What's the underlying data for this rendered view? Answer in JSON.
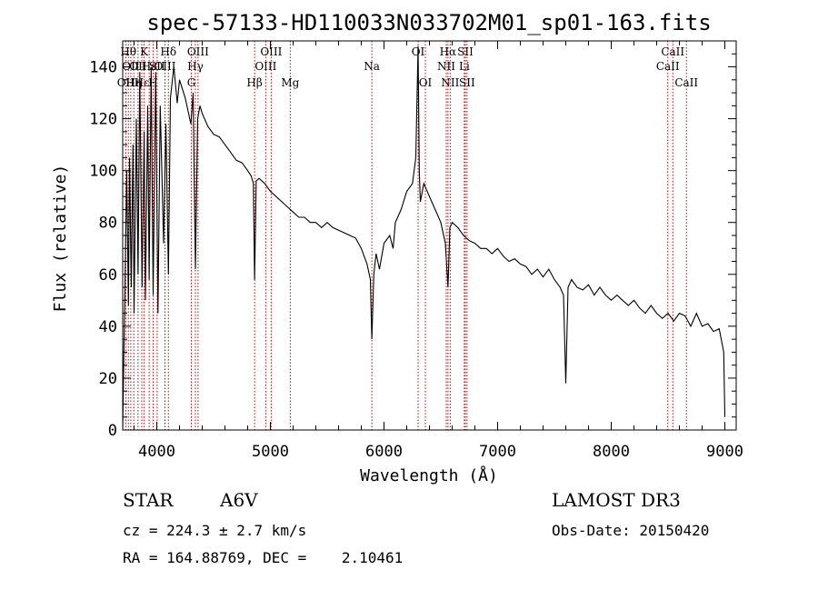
{
  "chart_data": {
    "type": "line",
    "title": "spec-57133-HD110033N033702M01_sp01-163.fits",
    "xlabel": "Wavelength (Å)",
    "ylabel": "Flux (relative)",
    "xlim": [
      3700,
      9100
    ],
    "ylim": [
      0,
      150
    ],
    "xticks": [
      4000,
      5000,
      6000,
      7000,
      8000,
      9000
    ],
    "yticks": [
      0,
      20,
      40,
      60,
      80,
      100,
      120,
      140
    ],
    "series": [
      {
        "name": "flux",
        "x": [
          3700,
          3710,
          3720,
          3735,
          3750,
          3760,
          3775,
          3790,
          3800,
          3820,
          3835,
          3850,
          3870,
          3889,
          3900,
          3920,
          3933,
          3950,
          3968,
          3990,
          4010,
          4030,
          4060,
          4080,
          4102,
          4120,
          4150,
          4180,
          4200,
          4250,
          4300,
          4320,
          4340,
          4360,
          4380,
          4400,
          4450,
          4500,
          4550,
          4600,
          4650,
          4700,
          4750,
          4800,
          4830,
          4850,
          4861,
          4875,
          4900,
          4950,
          5000,
          5050,
          5100,
          5150,
          5200,
          5250,
          5300,
          5350,
          5400,
          5450,
          5500,
          5550,
          5600,
          5650,
          5700,
          5750,
          5800,
          5850,
          5880,
          5893,
          5910,
          5930,
          5960,
          6000,
          6050,
          6080,
          6100,
          6150,
          6200,
          6250,
          6280,
          6300,
          6310,
          6320,
          6350,
          6400,
          6450,
          6500,
          6540,
          6563,
          6580,
          6600,
          6650,
          6700,
          6750,
          6800,
          6850,
          6900,
          6950,
          7000,
          7050,
          7100,
          7150,
          7200,
          7250,
          7300,
          7350,
          7400,
          7450,
          7500,
          7550,
          7580,
          7600,
          7620,
          7650,
          7700,
          7750,
          7800,
          7850,
          7900,
          7950,
          8000,
          8050,
          8100,
          8150,
          8200,
          8250,
          8300,
          8350,
          8400,
          8450,
          8500,
          8550,
          8600,
          8650,
          8700,
          8750,
          8800,
          8850,
          8900,
          8950,
          8990,
          9000
        ],
        "y": [
          0,
          30,
          55,
          100,
          48,
          105,
          55,
          110,
          45,
          120,
          60,
          138,
          55,
          115,
          50,
          125,
          58,
          140,
          52,
          138,
          45,
          125,
          72,
          118,
          60,
          128,
          140,
          126,
          135,
          128,
          118,
          130,
          62,
          120,
          125,
          122,
          117,
          114,
          113,
          110,
          107,
          104,
          103,
          100,
          98,
          95,
          58,
          96,
          97,
          95,
          92,
          90,
          88,
          86,
          84,
          82,
          82,
          80,
          80,
          78,
          80,
          78,
          77,
          76,
          75,
          74,
          70,
          64,
          58,
          35,
          60,
          68,
          62,
          72,
          75,
          70,
          80,
          85,
          92,
          95,
          105,
          148,
          100,
          88,
          95,
          90,
          85,
          80,
          72,
          55,
          78,
          80,
          78,
          75,
          73,
          72,
          70,
          70,
          68,
          70,
          67,
          65,
          66,
          64,
          63,
          60,
          62,
          59,
          62,
          58,
          55,
          52,
          18,
          55,
          58,
          55,
          54,
          56,
          52,
          55,
          52,
          50,
          52,
          50,
          48,
          50,
          47,
          45,
          48,
          45,
          43,
          45,
          42,
          45,
          44,
          40,
          45,
          40,
          41,
          38,
          39,
          30,
          5
        ]
      }
    ],
    "line_markers": [
      {
        "x": 3727,
        "label": "OII",
        "row": 3
      },
      {
        "x": 3750,
        "label": "Hθ",
        "row": 1
      },
      {
        "x": 3771,
        "label": "OII",
        "row": 2
      },
      {
        "x": 3798,
        "label": "Hη",
        "row": 3
      },
      {
        "x": 3835,
        "label": "OII",
        "row": 2
      },
      {
        "x": 3868,
        "label": "Hε",
        "row": 3
      },
      {
        "x": 3889,
        "label": "K",
        "row": 1
      },
      {
        "x": 3933,
        "label": "Hε",
        "row": 2
      },
      {
        "x": 3968,
        "label": "H",
        "row": 3
      },
      {
        "x": 4003,
        "label": "SII",
        "row": 2
      },
      {
        "x": 4072,
        "label": "OIII",
        "row": 2
      },
      {
        "x": 4102,
        "label": "Hδ",
        "row": 1
      },
      {
        "x": 4304,
        "label": "G",
        "row": 3
      },
      {
        "x": 4340,
        "label": "Hγ",
        "row": 2
      },
      {
        "x": 4363,
        "label": "OIII",
        "row": 1
      },
      {
        "x": 4861,
        "label": "Hβ",
        "row": 3
      },
      {
        "x": 4959,
        "label": "OIII",
        "row": 2
      },
      {
        "x": 5007,
        "label": "OIII",
        "row": 1
      },
      {
        "x": 5175,
        "label": "Mg",
        "row": 3
      },
      {
        "x": 5893,
        "label": "Na",
        "row": 2
      },
      {
        "x": 6300,
        "label": "OI",
        "row": 1
      },
      {
        "x": 6364,
        "label": "OI",
        "row": 3
      },
      {
        "x": 6548,
        "label": "NII",
        "row": 2
      },
      {
        "x": 6563,
        "label": "Hα",
        "row": 1
      },
      {
        "x": 6583,
        "label": "NII",
        "row": 3
      },
      {
        "x": 6707,
        "label": "Li",
        "row": 2
      },
      {
        "x": 6716,
        "label": "SII",
        "row": 1
      },
      {
        "x": 6731,
        "label": "SII",
        "row": 3
      },
      {
        "x": 8498,
        "label": "CaII",
        "row": 2
      },
      {
        "x": 8542,
        "label": "CaII",
        "row": 1
      },
      {
        "x": 8662,
        "label": "CaII",
        "row": 3
      }
    ]
  },
  "info": {
    "object_type": "STAR",
    "spectral_class": "A6V",
    "survey": "LAMOST DR3",
    "cz": "cz = 224.3 ± 2.7 km/s",
    "obs_date": "Obs-Date: 20150420",
    "coords": "RA = 164.88769, DEC =    2.10461"
  },
  "colors": {
    "spectrum": "#000000",
    "marker": "#cc0000",
    "frame": "#000000"
  }
}
